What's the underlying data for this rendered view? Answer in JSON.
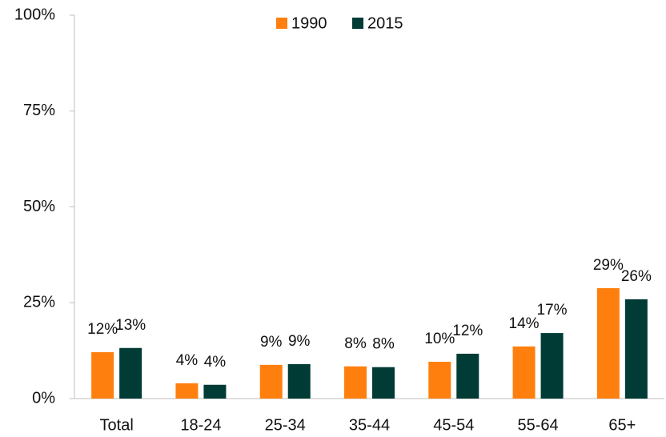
{
  "chart_data": {
    "type": "bar",
    "categories": [
      "Total",
      "18-24",
      "25-34",
      "35-44",
      "45-54",
      "55-64",
      "65+"
    ],
    "series": [
      {
        "name": "1990",
        "color": "#ff7f0e",
        "values": [
          12.1,
          4.0,
          8.8,
          8.4,
          9.6,
          13.6,
          28.8
        ],
        "value_labels": [
          "12%",
          "4%",
          "9%",
          "8%",
          "10%",
          "14%",
          "29%"
        ]
      },
      {
        "name": "2015",
        "color": "#003b36",
        "values": [
          13.2,
          3.6,
          9.0,
          8.2,
          11.7,
          17.1,
          25.9
        ],
        "value_labels": [
          "13%",
          "4%",
          "9%",
          "8%",
          "12%",
          "17%",
          "26%"
        ]
      }
    ],
    "ylim": [
      0,
      100
    ],
    "yticks": [
      {
        "value": 0,
        "label": "0%"
      },
      {
        "value": 25,
        "label": "25%"
      },
      {
        "value": 50,
        "label": "50%"
      },
      {
        "value": 75,
        "label": "75%"
      },
      {
        "value": 100,
        "label": "100%"
      }
    ],
    "legend": "top",
    "grid": false
  }
}
